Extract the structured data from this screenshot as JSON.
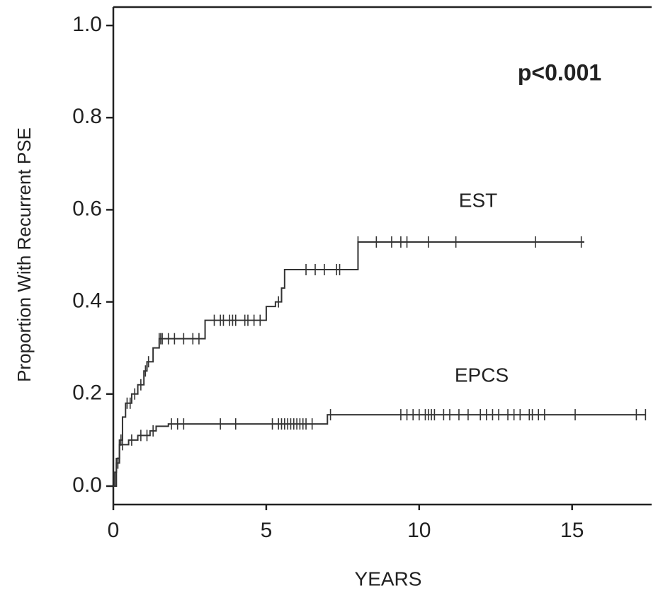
{
  "chart_data": {
    "type": "step",
    "annotation": "p<0.001",
    "ylabel": "Proportion With Recurrent PSE",
    "xlabel": "YEARS",
    "xlim": [
      0,
      17.6
    ],
    "ylim": [
      -0.04,
      1.04
    ],
    "xticks": [
      0,
      5,
      10,
      15
    ],
    "yticks": [
      {
        "value": 0,
        "label": "0.0"
      },
      {
        "value": 0.2,
        "label": "0.2"
      },
      {
        "value": 0.4,
        "label": "0.4"
      },
      {
        "value": 0.6,
        "label": "0.6"
      },
      {
        "value": 0.8,
        "label": "0.8"
      },
      {
        "value": 1,
        "label": "1.0"
      }
    ],
    "series": [
      {
        "name": "EST",
        "color": "#333333",
        "x": [
          0,
          0.1,
          0.2,
          0.3,
          0.4,
          0.6,
          0.8,
          1.0,
          1.1,
          1.3,
          1.5,
          3.0,
          5.0,
          5.3,
          5.5,
          5.6,
          8.0,
          15.4
        ],
        "values": [
          0,
          0.05,
          0.1,
          0.15,
          0.18,
          0.2,
          0.22,
          0.25,
          0.27,
          0.3,
          0.32,
          0.36,
          0.39,
          0.4,
          0.43,
          0.47,
          0.53,
          0.53
        ],
        "censored": [
          0.15,
          0.25,
          0.45,
          0.55,
          0.7,
          0.9,
          1.05,
          1.15,
          1.5,
          1.55,
          1.6,
          1.8,
          2.0,
          2.3,
          2.6,
          2.8,
          3.3,
          3.5,
          3.6,
          3.8,
          3.9,
          4.0,
          4.3,
          4.4,
          4.6,
          4.8,
          5.4,
          6.3,
          6.6,
          6.9,
          7.3,
          7.4,
          8.0,
          8.6,
          9.1,
          9.4,
          9.6,
          10.3,
          11.2,
          13.8,
          15.3
        ]
      },
      {
        "name": "EPCS",
        "color": "#333333",
        "x": [
          0,
          0.05,
          0.1,
          0.2,
          0.5,
          0.8,
          1.2,
          1.4,
          1.8,
          6.8,
          7.0,
          17.4
        ],
        "values": [
          0,
          0.03,
          0.06,
          0.09,
          0.1,
          0.11,
          0.12,
          0.13,
          0.135,
          0.135,
          0.155,
          0.155
        ],
        "censored": [
          0.3,
          0.6,
          0.9,
          1.1,
          1.3,
          1.9,
          2.1,
          2.3,
          3.5,
          4.0,
          5.2,
          5.4,
          5.5,
          5.6,
          5.7,
          5.8,
          5.9,
          6.0,
          6.1,
          6.2,
          6.3,
          6.5,
          7.1,
          9.4,
          9.6,
          9.8,
          10.0,
          10.2,
          10.3,
          10.4,
          10.5,
          10.8,
          11.0,
          11.3,
          11.6,
          12.0,
          12.2,
          12.4,
          12.6,
          12.9,
          13.1,
          13.3,
          13.6,
          13.7,
          13.9,
          14.1,
          15.1,
          17.1,
          17.4
        ]
      }
    ]
  }
}
